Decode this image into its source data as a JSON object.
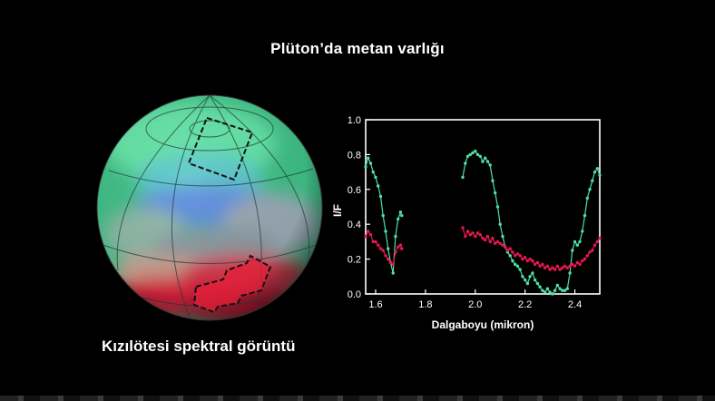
{
  "header": {
    "title": "Plüton’da metan varlığı"
  },
  "image_caption": "Kızılötesi spektral görüntü",
  "colors": {
    "background": "#000000",
    "series_green": "#4fe0a6",
    "series_red": "#e8174f",
    "globe_green": "#44c98f",
    "globe_blue": "#5b8de0",
    "globe_red": "#d8223d"
  },
  "chart_data": {
    "type": "line",
    "title": "",
    "xlabel": "Dalgaboyu (mikron)",
    "ylabel": "I/F",
    "xlim": [
      1.56,
      2.5
    ],
    "ylim": [
      0,
      1.0
    ],
    "xticks": [
      "1.6",
      "1.8",
      "2.0",
      "2.2",
      "2.4"
    ],
    "yticks": [
      "0.0",
      "0.2",
      "0.4",
      "0.6",
      "0.8",
      "1.0"
    ],
    "grid": false,
    "series": [
      {
        "color": "#4fe0a6",
        "segments": [
          [
            [
              1.56,
              0.73
            ],
            [
              1.57,
              0.78
            ],
            [
              1.58,
              0.75
            ],
            [
              1.59,
              0.7
            ],
            [
              1.6,
              0.67
            ],
            [
              1.61,
              0.62
            ],
            [
              1.62,
              0.56
            ],
            [
              1.63,
              0.45
            ],
            [
              1.64,
              0.36
            ],
            [
              1.65,
              0.26
            ],
            [
              1.66,
              0.18
            ],
            [
              1.67,
              0.12
            ],
            [
              1.68,
              0.33
            ],
            [
              1.69,
              0.43
            ],
            [
              1.7,
              0.47
            ],
            [
              1.705,
              0.45
            ]
          ],
          [
            [
              1.95,
              0.67
            ],
            [
              1.96,
              0.75
            ],
            [
              1.97,
              0.79
            ],
            [
              1.98,
              0.8
            ],
            [
              1.99,
              0.81
            ],
            [
              2.0,
              0.82
            ],
            [
              2.01,
              0.8
            ],
            [
              2.02,
              0.79
            ],
            [
              2.03,
              0.76
            ],
            [
              2.04,
              0.78
            ],
            [
              2.05,
              0.76
            ],
            [
              2.06,
              0.74
            ],
            [
              2.07,
              0.65
            ],
            [
              2.08,
              0.58
            ],
            [
              2.09,
              0.5
            ],
            [
              2.1,
              0.4
            ],
            [
              2.11,
              0.33
            ],
            [
              2.12,
              0.27
            ],
            [
              2.13,
              0.24
            ],
            [
              2.14,
              0.22
            ],
            [
              2.15,
              0.19
            ],
            [
              2.16,
              0.17
            ],
            [
              2.17,
              0.16
            ],
            [
              2.18,
              0.14
            ],
            [
              2.19,
              0.1
            ],
            [
              2.2,
              0.08
            ],
            [
              2.21,
              0.06
            ],
            [
              2.22,
              0.1
            ],
            [
              2.23,
              0.12
            ],
            [
              2.24,
              0.08
            ],
            [
              2.25,
              0.06
            ],
            [
              2.26,
              0.04
            ],
            [
              2.27,
              0.02
            ],
            [
              2.28,
              0.01
            ],
            [
              2.29,
              0.03
            ],
            [
              2.3,
              0.01
            ],
            [
              2.31,
              0.0
            ],
            [
              2.32,
              0.02
            ],
            [
              2.33,
              0.05
            ],
            [
              2.34,
              0.03
            ],
            [
              2.35,
              0.02
            ],
            [
              2.36,
              0.02
            ],
            [
              2.37,
              0.03
            ],
            [
              2.38,
              0.12
            ],
            [
              2.39,
              0.25
            ],
            [
              2.4,
              0.3
            ],
            [
              2.41,
              0.28
            ],
            [
              2.42,
              0.3
            ],
            [
              2.43,
              0.36
            ],
            [
              2.44,
              0.45
            ],
            [
              2.45,
              0.55
            ],
            [
              2.46,
              0.6
            ],
            [
              2.47,
              0.65
            ],
            [
              2.48,
              0.7
            ],
            [
              2.49,
              0.72
            ],
            [
              2.5,
              0.68
            ]
          ]
        ]
      },
      {
        "color": "#e8174f",
        "segments": [
          [
            [
              1.56,
              0.33
            ],
            [
              1.57,
              0.36
            ],
            [
              1.58,
              0.34
            ],
            [
              1.59,
              0.3
            ],
            [
              1.6,
              0.3
            ],
            [
              1.61,
              0.28
            ],
            [
              1.62,
              0.26
            ],
            [
              1.63,
              0.25
            ],
            [
              1.64,
              0.22
            ],
            [
              1.65,
              0.2
            ],
            [
              1.66,
              0.18
            ],
            [
              1.67,
              0.17
            ],
            [
              1.68,
              0.24
            ],
            [
              1.69,
              0.27
            ],
            [
              1.7,
              0.28
            ],
            [
              1.705,
              0.26
            ]
          ],
          [
            [
              1.95,
              0.38
            ],
            [
              1.96,
              0.33
            ],
            [
              1.97,
              0.36
            ],
            [
              1.98,
              0.34
            ],
            [
              1.99,
              0.35
            ],
            [
              2.0,
              0.33
            ],
            [
              2.01,
              0.35
            ],
            [
              2.02,
              0.34
            ],
            [
              2.03,
              0.32
            ],
            [
              2.04,
              0.31
            ],
            [
              2.05,
              0.33
            ],
            [
              2.06,
              0.3
            ],
            [
              2.07,
              0.32
            ],
            [
              2.08,
              0.29
            ],
            [
              2.09,
              0.3
            ],
            [
              2.1,
              0.29
            ],
            [
              2.11,
              0.28
            ],
            [
              2.12,
              0.27
            ],
            [
              2.13,
              0.25
            ],
            [
              2.14,
              0.26
            ],
            [
              2.15,
              0.24
            ],
            [
              2.16,
              0.22
            ],
            [
              2.17,
              0.23
            ],
            [
              2.18,
              0.22
            ],
            [
              2.19,
              0.2
            ],
            [
              2.2,
              0.21
            ],
            [
              2.21,
              0.19
            ],
            [
              2.22,
              0.2
            ],
            [
              2.23,
              0.19
            ],
            [
              2.24,
              0.17
            ],
            [
              2.25,
              0.18
            ],
            [
              2.26,
              0.16
            ],
            [
              2.27,
              0.17
            ],
            [
              2.28,
              0.15
            ],
            [
              2.29,
              0.16
            ],
            [
              2.3,
              0.14
            ],
            [
              2.31,
              0.15
            ],
            [
              2.32,
              0.14
            ],
            [
              2.33,
              0.16
            ],
            [
              2.34,
              0.14
            ],
            [
              2.35,
              0.15
            ],
            [
              2.36,
              0.16
            ],
            [
              2.37,
              0.15
            ],
            [
              2.38,
              0.16
            ],
            [
              2.39,
              0.17
            ],
            [
              2.4,
              0.16
            ],
            [
              2.41,
              0.18
            ],
            [
              2.42,
              0.17
            ],
            [
              2.43,
              0.19
            ],
            [
              2.44,
              0.2
            ],
            [
              2.45,
              0.22
            ],
            [
              2.46,
              0.24
            ],
            [
              2.47,
              0.25
            ],
            [
              2.48,
              0.28
            ],
            [
              2.49,
              0.3
            ],
            [
              2.5,
              0.32
            ]
          ]
        ]
      }
    ]
  }
}
